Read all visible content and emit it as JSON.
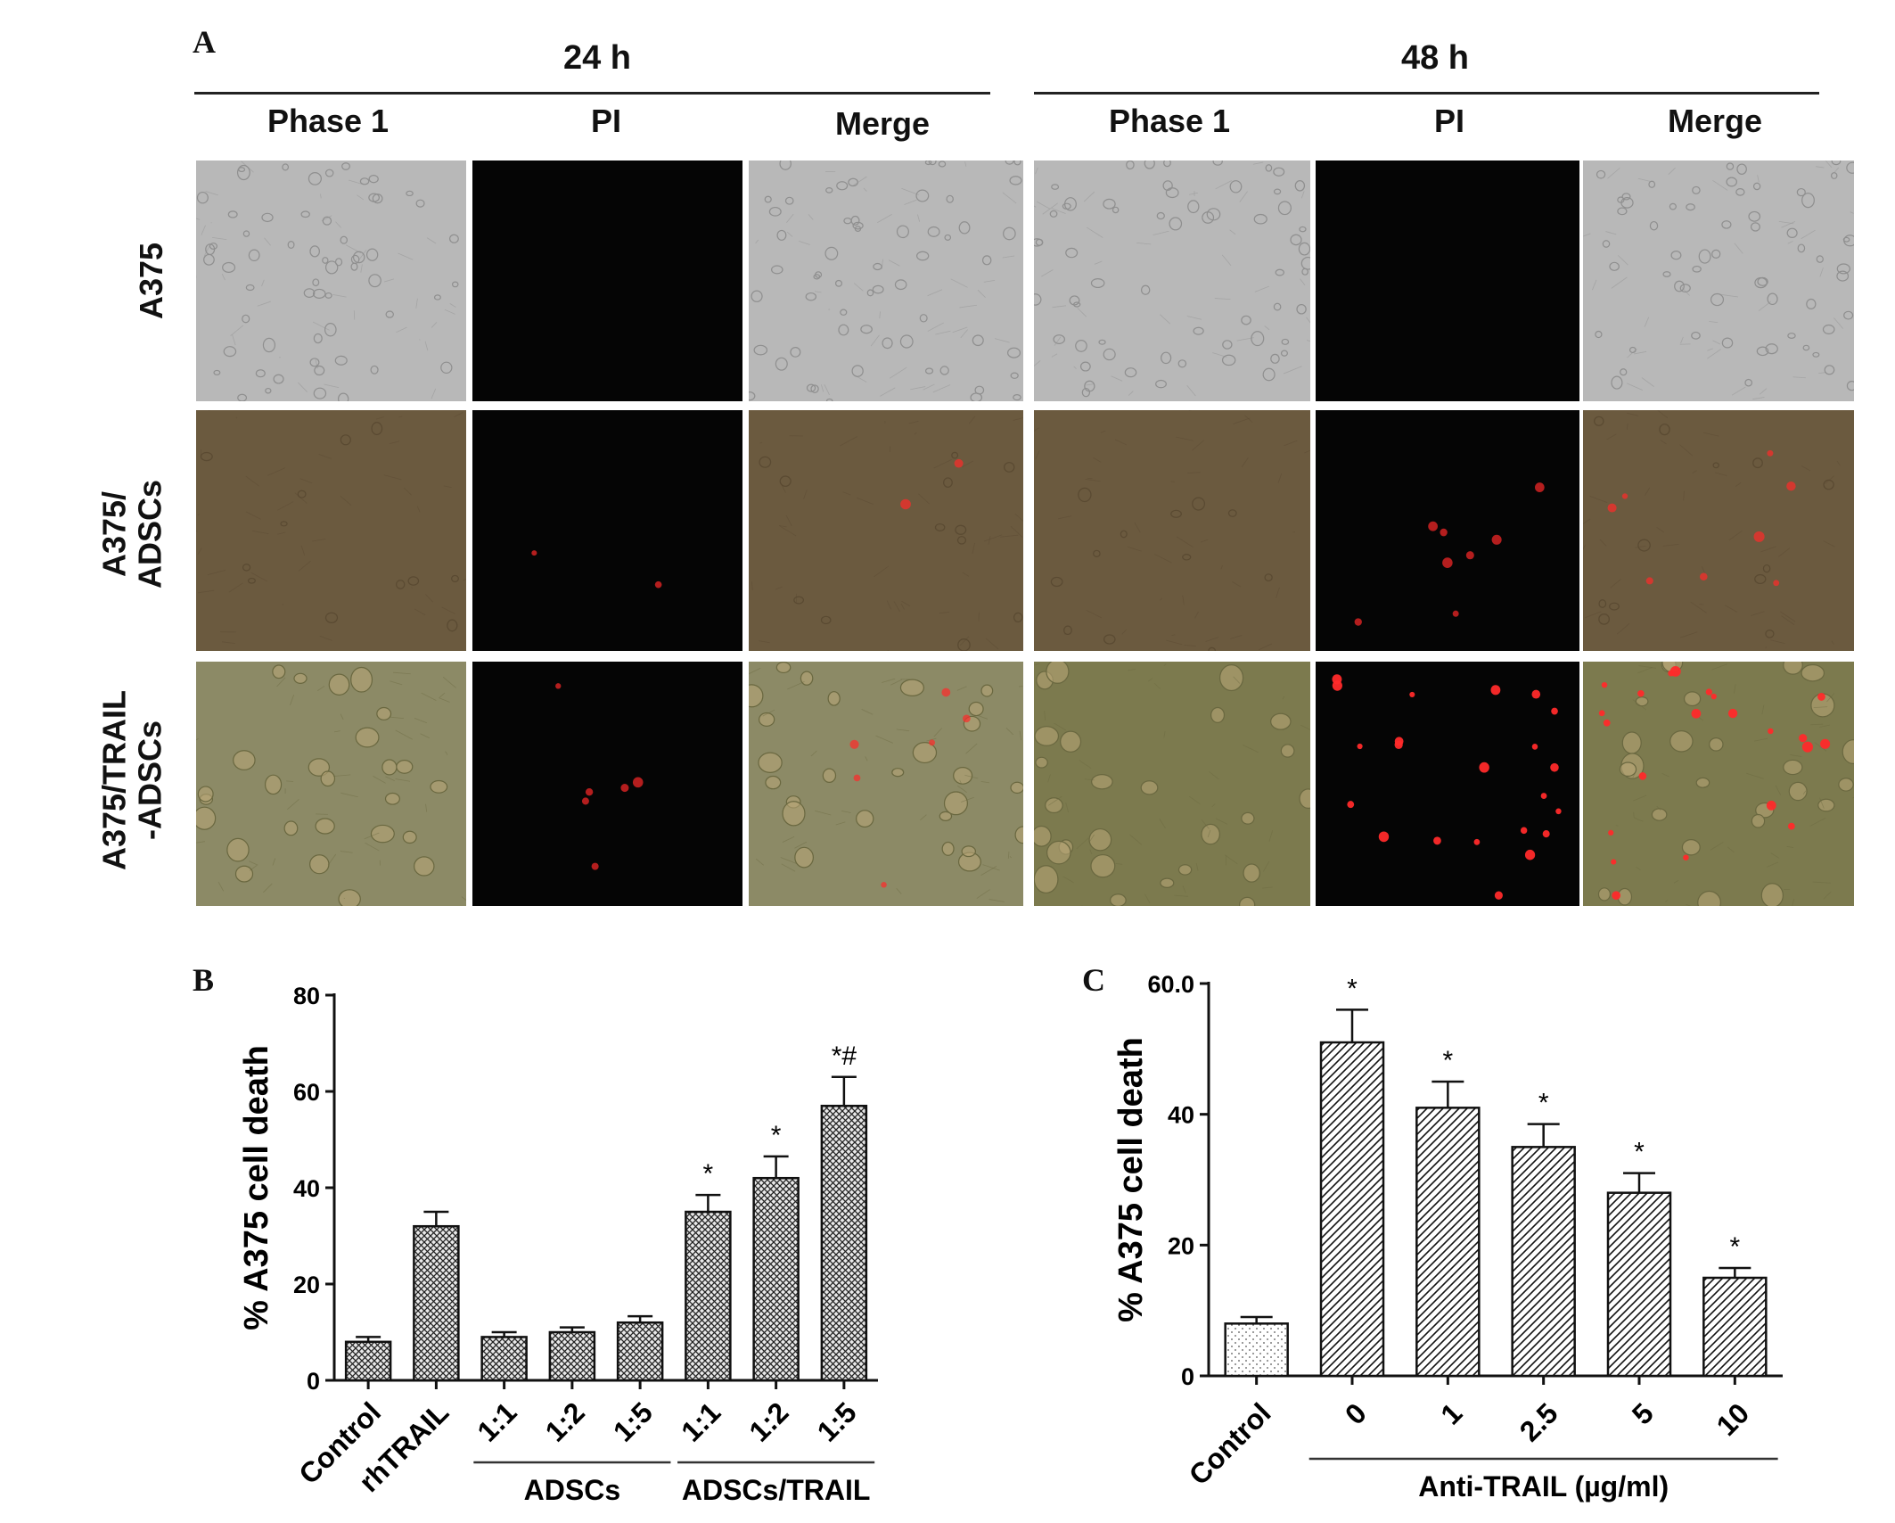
{
  "panel_a": {
    "letter": "A",
    "time_groups": [
      {
        "label": "24 h",
        "columns": [
          "Phase 1",
          "PI",
          "Merge"
        ]
      },
      {
        "label": "48 h",
        "columns": [
          "Phase 1",
          "PI",
          "Merge"
        ]
      }
    ],
    "rows": [
      "A375",
      "A375/\nADSCs",
      "A375/TRAIL\n-ADSCs"
    ],
    "colors": {
      "phase_gray": "#b8b8b8",
      "phase_brown": "#6b5a3f",
      "phase_olive": "#8c8a66",
      "pi_black": "#050505",
      "pi_red": "#ff2a2a"
    }
  },
  "chart_data": [
    {
      "panel": "B",
      "type": "bar",
      "ylabel": "% A375 cell death",
      "ylim": [
        0,
        80
      ],
      "yticks": [
        0,
        20,
        40,
        60,
        80
      ],
      "categories": [
        "Control",
        "rhTRAIL",
        "1:1",
        "1:2",
        "1:5",
        "1:1",
        "1:2",
        "1:5"
      ],
      "values": [
        8,
        32,
        9,
        10,
        12,
        35,
        42,
        57
      ],
      "errors": [
        1,
        3,
        1,
        1,
        1.3,
        3.5,
        4.5,
        6
      ],
      "annotations": [
        "",
        "",
        "",
        "",
        "",
        "*",
        "*",
        "*#"
      ],
      "groups": [
        {
          "label": "ADSCs",
          "from": 2,
          "to": 4
        },
        {
          "label": "ADSCs/TRAIL",
          "from": 5,
          "to": 7
        }
      ],
      "bar_pattern": "crosshatch"
    },
    {
      "panel": "C",
      "type": "bar",
      "ylabel": "% A375 cell death",
      "ylim": [
        0,
        60
      ],
      "yticks": [
        "0",
        "20",
        "40",
        "60.0"
      ],
      "categories": [
        "Control",
        "0",
        "1",
        "2.5",
        "5",
        "10"
      ],
      "values": [
        8,
        51,
        41,
        35,
        28,
        15
      ],
      "errors": [
        1,
        5,
        4,
        3.5,
        3,
        1.5
      ],
      "annotations": [
        "",
        "*",
        "*",
        "*",
        "*",
        "*"
      ],
      "groups": [
        {
          "label": "Anti-TRAIL (µg/ml)",
          "from": 1,
          "to": 5
        }
      ],
      "bar_pattern": "diagonal"
    }
  ]
}
